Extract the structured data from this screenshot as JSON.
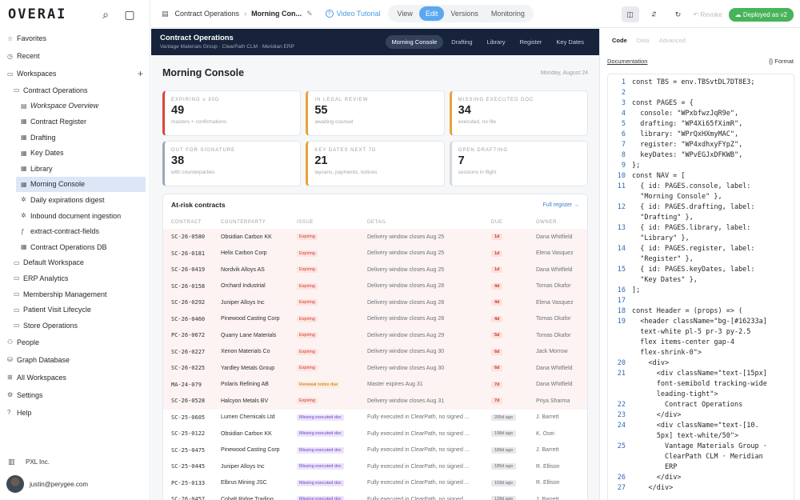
{
  "brand": {
    "logo": "OVERAI"
  },
  "sidebar": {
    "top": [
      {
        "icon": "star-icon",
        "glyph": "☆",
        "label": "Favorites"
      },
      {
        "icon": "clock-icon",
        "glyph": "◷",
        "label": "Recent"
      },
      {
        "icon": "folder-icon",
        "glyph": "▭",
        "label": "Workspaces"
      }
    ],
    "workspace": {
      "glyph": "▭",
      "label": "Contract Operations"
    },
    "children": [
      {
        "glyph": "▤",
        "label": "Workspace Overview",
        "italic": true
      },
      {
        "glyph": "▦",
        "label": "Contract Register"
      },
      {
        "glyph": "▦",
        "label": "Drafting"
      },
      {
        "glyph": "▦",
        "label": "Key Dates"
      },
      {
        "glyph": "▦",
        "label": "Library"
      },
      {
        "glyph": "▦",
        "label": "Morning Console",
        "active": true
      },
      {
        "glyph": "✲",
        "label": "Daily expirations digest"
      },
      {
        "glyph": "✲",
        "label": "Inbound document ingestion"
      },
      {
        "glyph": "ƒ",
        "label": "extract-contract-fields"
      },
      {
        "glyph": "▦",
        "label": "Contract Operations DB"
      }
    ],
    "workspaces": [
      {
        "glyph": "▭",
        "label": "Default Workspace"
      },
      {
        "glyph": "▭",
        "label": "ERP Analytics"
      },
      {
        "glyph": "▭",
        "label": "Membership Management"
      },
      {
        "glyph": "▭",
        "label": "Patient Visit Lifecycle"
      },
      {
        "glyph": "▭",
        "label": "Store Operations"
      }
    ],
    "bottom": [
      {
        "icon": "people-icon",
        "glyph": "⚇",
        "label": "People"
      },
      {
        "icon": "database-icon",
        "glyph": "⛁",
        "label": "Graph Database"
      },
      {
        "icon": "grid-icon",
        "glyph": "⊞",
        "label": "All Workspaces"
      },
      {
        "icon": "gear-icon",
        "glyph": "⚙",
        "label": "Settings"
      },
      {
        "icon": "help-icon",
        "glyph": "?",
        "label": "Help"
      }
    ],
    "org": "PXL Inc.",
    "user_email": "justin@perygee.com"
  },
  "topbar": {
    "crumb_parent": "Contract Operations",
    "crumb_current": "Morning Con...",
    "tutorial": "Video Tutorial",
    "modes": [
      "View",
      "Edit",
      "Versions",
      "Monitoring"
    ],
    "active_mode": "Edit",
    "revoke": "Revoke",
    "deployed": "Deployed as v2"
  },
  "preview": {
    "header_title": "Contract Operations",
    "header_sub": "Vantage Materials Group · ClearPath CLM · Meridian ERP",
    "tabs": [
      "Morning Console",
      "Drafting",
      "Library",
      "Register",
      "Key Dates"
    ],
    "page_title": "Morning Console",
    "date": "Monday, August 24",
    "cards": [
      {
        "label": "Expiring ≤ 30d",
        "value": "49",
        "sub": "masters + confirmations",
        "color": "#d9443a"
      },
      {
        "label": "In legal review",
        "value": "55",
        "sub": "awaiting counsel",
        "color": "#e8a23a"
      },
      {
        "label": "Missing executed doc",
        "value": "34",
        "sub": "executed, no file",
        "color": "#e8a23a"
      },
      {
        "label": "Out for signature",
        "value": "38",
        "sub": "with counterparties",
        "color": "#9aa8b8"
      },
      {
        "label": "Key dates next 7d",
        "value": "21",
        "sub": "laycans, payments, notices",
        "color": "#e8a23a"
      },
      {
        "label": "Open drafting",
        "value": "7",
        "sub": "sessions in flight",
        "color": "#d5d9de"
      }
    ],
    "risk_title": "At-risk contracts",
    "full_register": "Full register →",
    "columns": [
      "Contract",
      "Counterparty",
      "Issue",
      "Detail",
      "Due",
      "Owner"
    ],
    "rows": [
      {
        "id": "SC-26-0580",
        "cp": "Obsidian Carbon KK",
        "issue": "Expiring",
        "kind": "expiring",
        "detail": "Delivery window closes Aug 25",
        "due": "1d",
        "dk": "red",
        "owner": "Dana Whitfield",
        "hot": true
      },
      {
        "id": "SC-26-0181",
        "cp": "Helix Carbon Corp",
        "issue": "Expiring",
        "kind": "expiring",
        "detail": "Delivery window closes Aug 25",
        "due": "1d",
        "dk": "red",
        "owner": "Elena Vasquez",
        "hot": true
      },
      {
        "id": "SC-26-0419",
        "cp": "Nordvik Alloys AS",
        "issue": "Expiring",
        "kind": "expiring",
        "detail": "Delivery window closes Aug 25",
        "due": "1d",
        "dk": "red",
        "owner": "Dana Whitfield",
        "hot": true
      },
      {
        "id": "SC-26-0158",
        "cp": "Orchard Industrial",
        "issue": "Expiring",
        "kind": "expiring",
        "detail": "Delivery window closes Aug 28",
        "due": "4d",
        "dk": "red",
        "owner": "Tomas Okafor",
        "hot": true
      },
      {
        "id": "SC-26-0292",
        "cp": "Juniper Alloys Inc",
        "issue": "Expiring",
        "kind": "expiring",
        "detail": "Delivery window closes Aug 28",
        "due": "4d",
        "dk": "red",
        "owner": "Elena Vasquez",
        "hot": true
      },
      {
        "id": "SC-26-0460",
        "cp": "Pinewood Casting Corp",
        "issue": "Expiring",
        "kind": "expiring",
        "detail": "Delivery window closes Aug 28",
        "due": "4d",
        "dk": "red",
        "owner": "Tomas Okafor",
        "hot": true
      },
      {
        "id": "PC-26-0672",
        "cp": "Quarry Lane Materials",
        "issue": "Expiring",
        "kind": "expiring",
        "detail": "Delivery window closes Aug 29",
        "due": "5d",
        "dk": "red",
        "owner": "Tomas Okafor",
        "hot": true
      },
      {
        "id": "SC-26-0227",
        "cp": "Xenon Materials Co",
        "issue": "Expiring",
        "kind": "expiring",
        "detail": "Delivery window closes Aug 30",
        "due": "6d",
        "dk": "red",
        "owner": "Jack Morrow",
        "hot": true
      },
      {
        "id": "SC-26-0225",
        "cp": "Yardley Metals Group",
        "issue": "Expiring",
        "kind": "expiring",
        "detail": "Delivery window closes Aug 30",
        "due": "6d",
        "dk": "red",
        "owner": "Dana Whitfield",
        "hot": true
      },
      {
        "id": "MA-24-079",
        "cp": "Polaris Refining AB",
        "issue": "Renewal notice due",
        "kind": "renewal",
        "detail": "Master expires Aug 31",
        "due": "7d",
        "dk": "red",
        "owner": "Dana Whitfield",
        "hot": true
      },
      {
        "id": "SC-26-0528",
        "cp": "Halcyon Metals BV",
        "issue": "Expiring",
        "kind": "expiring",
        "detail": "Delivery window closes Aug 31",
        "due": "7d",
        "dk": "red",
        "owner": "Priya Sharma",
        "hot": true
      },
      {
        "id": "SC-25-0605",
        "cp": "Lumen Chemicals Ltd",
        "issue": "Missing executed doc",
        "kind": "missing",
        "detail": "Fully executed in ClearPath, no signed ...",
        "due": "205d ago",
        "dk": "gray",
        "owner": "J. Barrett",
        "hot": false
      },
      {
        "id": "SC-25-0122",
        "cp": "Obsidian Carbon KK",
        "issue": "Missing executed doc",
        "kind": "missing",
        "detail": "Fully executed in ClearPath, no signed ...",
        "due": "198d ago",
        "dk": "gray",
        "owner": "K. Osei",
        "hot": false
      },
      {
        "id": "SC-25-0475",
        "cp": "Pinewood Casting Corp",
        "issue": "Missing executed doc",
        "kind": "missing",
        "detail": "Fully executed in ClearPath, no signed ...",
        "due": "189d ago",
        "dk": "gray",
        "owner": "J. Barrett",
        "hot": false
      },
      {
        "id": "SC-25-0445",
        "cp": "Juniper Alloys Inc",
        "issue": "Missing executed doc",
        "kind": "missing",
        "detail": "Fully executed in ClearPath, no signed ...",
        "due": "185d ago",
        "dk": "gray",
        "owner": "R. Ellison",
        "hot": false
      },
      {
        "id": "PC-25-0133",
        "cp": "Elbrus Mining JSC",
        "issue": "Missing executed doc",
        "kind": "missing",
        "detail": "Fully executed in ClearPath, no signed ...",
        "due": "159d ago",
        "dk": "gray",
        "owner": "R. Ellison",
        "hot": false
      },
      {
        "id": "SC-26-0457",
        "cp": "Cobalt Ridge Trading",
        "issue": "Missing executed doc",
        "kind": "missing",
        "detail": "Fully executed in ClearPath, no signed ...",
        "due": "128d ago",
        "dk": "gray",
        "owner": "J. Barrett",
        "hot": false
      }
    ]
  },
  "codepane": {
    "tabs": [
      "Code",
      "Data",
      "Advanced"
    ],
    "documentation": "Documentation",
    "format": "{} Format",
    "lines": [
      {
        "n": "1",
        "t": "const TBS = env.TBSvtDL7DT8E3;"
      },
      {
        "n": "2",
        "t": ""
      },
      {
        "n": "3",
        "t": "const PAGES = {"
      },
      {
        "n": "4",
        "t": "  console: \"WPxbfwzJqR9e\","
      },
      {
        "n": "5",
        "t": "  drafting: \"WP4Xi65fXimR\","
      },
      {
        "n": "6",
        "t": "  library: \"WPrQxHXmyMAC\","
      },
      {
        "n": "7",
        "t": "  register: \"WP4xdhxyFYpZ\","
      },
      {
        "n": "8",
        "t": "  keyDates: \"WPvEGJxDFKWB\","
      },
      {
        "n": "9",
        "t": "};"
      },
      {
        "n": "10",
        "t": "const NAV = ["
      },
      {
        "n": "11",
        "t": "  { id: PAGES.console, label:\n  \"Morning Console\" },"
      },
      {
        "n": "12",
        "t": "  { id: PAGES.drafting, label:\n  \"Drafting\" },"
      },
      {
        "n": "13",
        "t": "  { id: PAGES.library, label:\n  \"Library\" },"
      },
      {
        "n": "14",
        "t": "  { id: PAGES.register, label:\n  \"Register\" },"
      },
      {
        "n": "15",
        "t": "  { id: PAGES.keyDates, label:\n  \"Key Dates\" },"
      },
      {
        "n": "16",
        "t": "];"
      },
      {
        "n": "17",
        "t": ""
      },
      {
        "n": "18",
        "t": "const Header = (props) => ("
      },
      {
        "n": "19",
        "t": "  <header className=\"bg-[#16233a]\n  text-white pl-5 pr-3 py-2.5\n  flex items-center gap-4\n  flex-shrink-0\">"
      },
      {
        "n": "20",
        "t": "    <div>"
      },
      {
        "n": "21",
        "t": "      <div className=\"text-[15px]\n      font-semibold tracking-wide\n      leading-tight\">"
      },
      {
        "n": "22",
        "t": "        Contract Operations"
      },
      {
        "n": "23",
        "t": "      </div>"
      },
      {
        "n": "24",
        "t": "      <div className=\"text-[10.\n      5px] text-white/50\">"
      },
      {
        "n": "25",
        "t": "        Vantage Materials Group ·\n        ClearPath CLM · Meridian\n        ERP"
      },
      {
        "n": "26",
        "t": "      </div>"
      },
      {
        "n": "27",
        "t": "    </div>"
      }
    ]
  }
}
